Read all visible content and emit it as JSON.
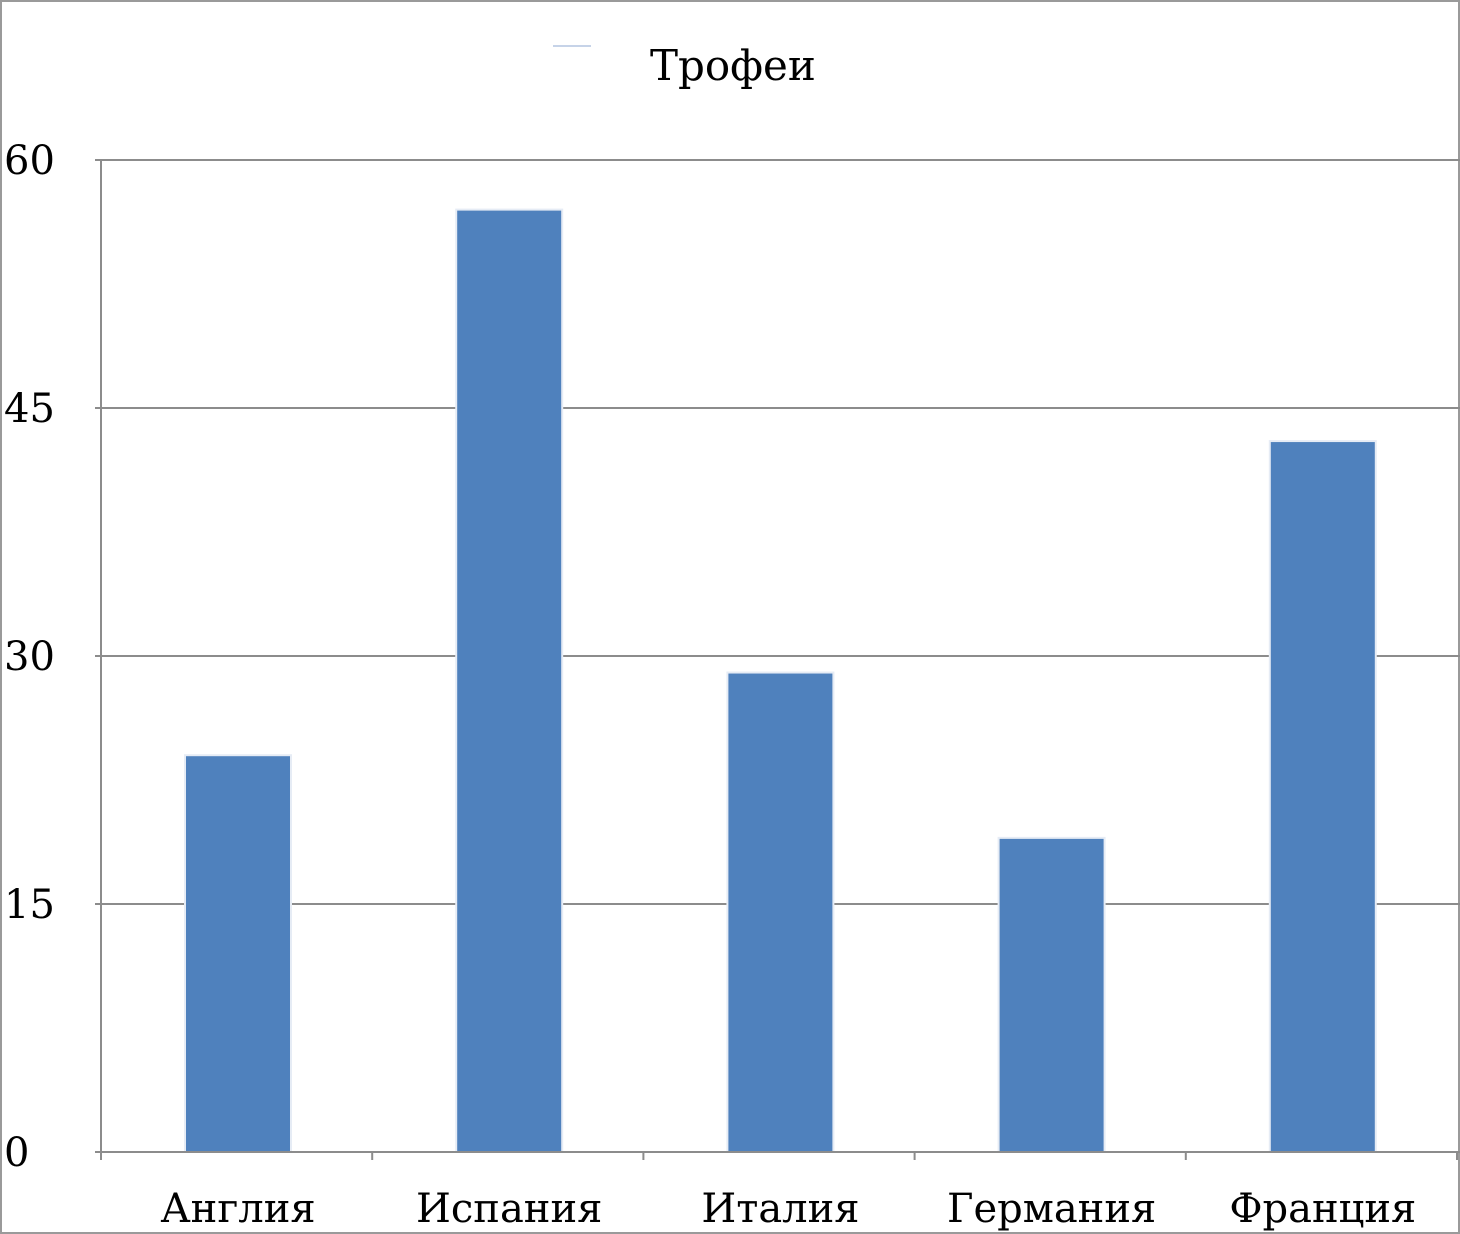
{
  "chart_data": {
    "type": "bar",
    "categories": [
      "Англия",
      "Испания",
      "Италия",
      "Германия",
      "Франция"
    ],
    "series": [
      {
        "name": "Трофеи",
        "values": [
          24,
          57,
          29,
          19,
          43
        ]
      }
    ],
    "ylim": [
      0,
      60
    ],
    "yticks": [
      0,
      15,
      30,
      45,
      60
    ],
    "grid": true,
    "legend": "top",
    "bar_color": "#4f81bd",
    "legend_line_color": "#c6d3e8"
  }
}
